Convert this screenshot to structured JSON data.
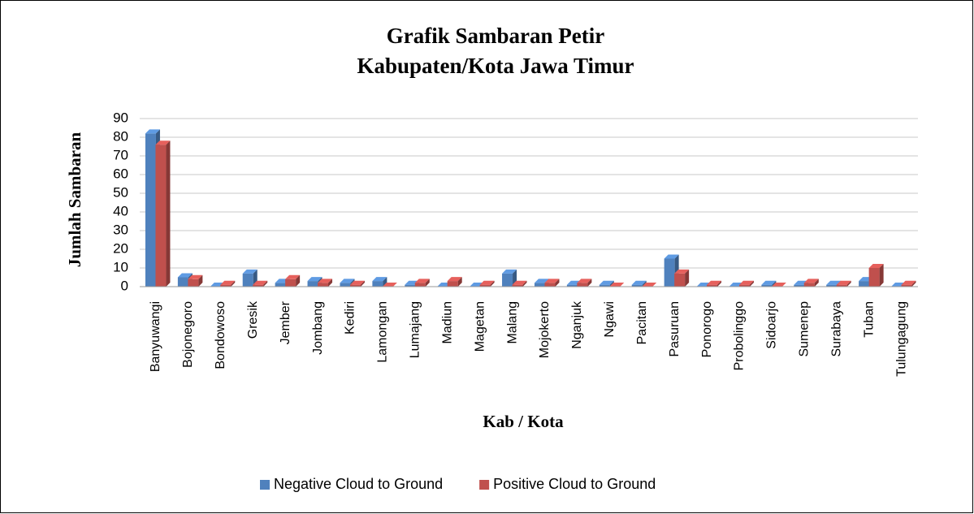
{
  "chart_data": {
    "type": "bar",
    "title": "Grafik Sambaran Petir",
    "subtitle": "Kabupaten/Kota Jawa Timur",
    "x_label": "Kab / Kota",
    "y_label": "Jumlah Sambaran",
    "categories": [
      "Banyuwangi",
      "Bojonegoro",
      "Bondowoso",
      "Gresik",
      "Jember",
      "Jombang",
      "Kediri",
      "Lamongan",
      "Lumajang",
      "Madiun",
      "Magetan",
      "Malang",
      "Mojokerto",
      "Nganjuk",
      "Ngawi",
      "Pacitan",
      "Pasuruan",
      "Ponorogo",
      "Probolinggo",
      "Sidoarjo",
      "Sumenep",
      "Surabaya",
      "Tuban",
      "Tulungagung"
    ],
    "series": [
      {
        "name": "Negative Cloud to Ground",
        "color": "#4f81bd",
        "values": [
          82,
          5,
          0,
          7,
          2,
          3,
          2,
          3,
          1,
          0,
          0,
          7,
          2,
          1,
          1,
          1,
          15,
          0,
          0,
          1,
          1,
          1,
          3,
          0
        ]
      },
      {
        "name": "Positive Cloud to Ground",
        "color": "#c0504d",
        "values": [
          76,
          4,
          1,
          1,
          4,
          2,
          1,
          0,
          2,
          3,
          1,
          1,
          2,
          2,
          0,
          0,
          7,
          1,
          1,
          0,
          2,
          1,
          10,
          1
        ]
      }
    ],
    "ylim": [
      0,
      90
    ],
    "yticks": [
      0,
      10,
      20,
      30,
      40,
      50,
      60,
      70,
      80,
      90
    ],
    "grid": true,
    "legend": "bottom"
  }
}
